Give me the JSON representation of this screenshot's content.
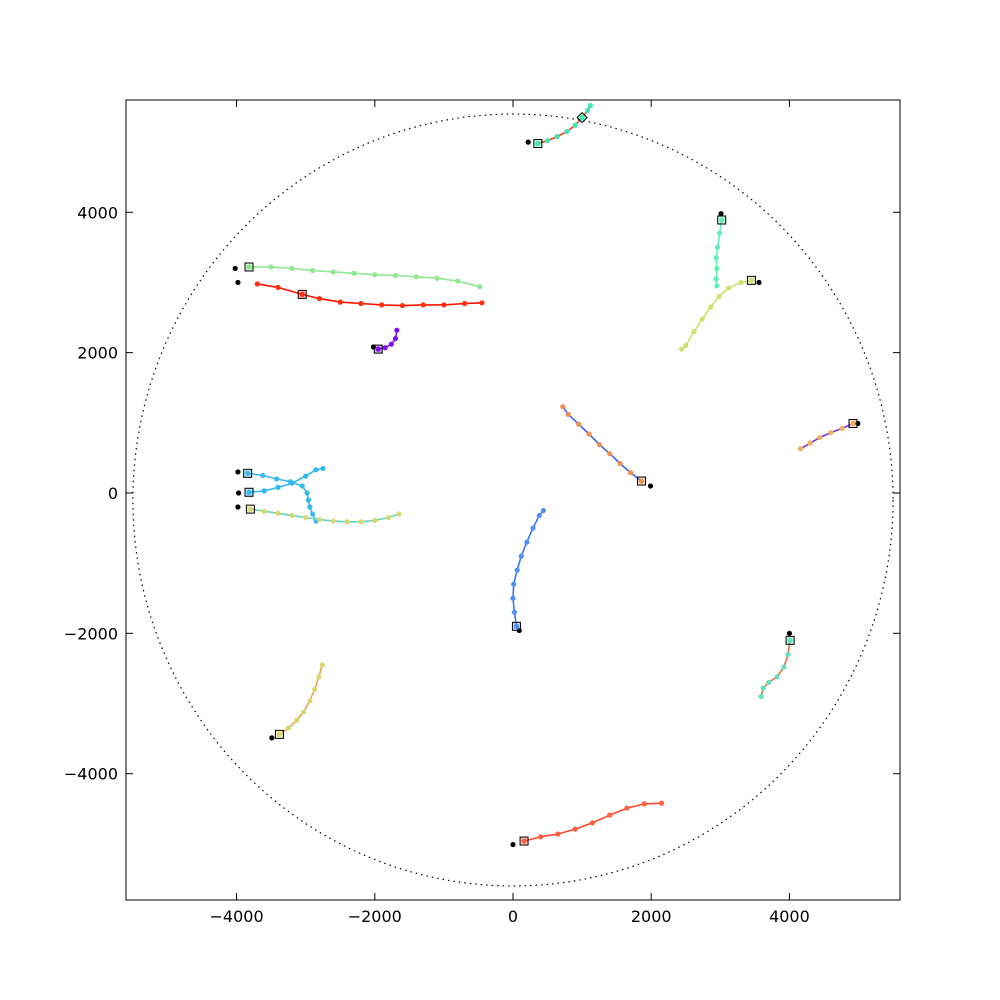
{
  "chart_data": {
    "type": "scatter",
    "title": "",
    "xlabel": "",
    "ylabel": "",
    "xlim": [
      -5600,
      5600
    ],
    "ylim": [
      -5800,
      5600
    ],
    "x_ticks": [
      -4000,
      -2000,
      0,
      2000,
      4000
    ],
    "y_ticks": [
      -4000,
      -2000,
      0,
      2000,
      4000
    ],
    "x_tick_labels": [
      "−4000",
      "−2000",
      "0",
      "2000",
      "4000"
    ],
    "y_tick_labels": [
      "−4000",
      "−2000",
      "0",
      "2000",
      "4000"
    ],
    "grid": false,
    "boundary_circle": {
      "center": [
        0,
        -100
      ],
      "radius": 5500,
      "style": "dotted",
      "color": "#000000"
    },
    "tracks": [
      {
        "name": "track-top-center",
        "color": "#e8451e",
        "dot_color": "#40e8b0",
        "start": [
          220,
          5000
        ],
        "square": [
          360,
          4980
        ],
        "end": [
          1000,
          5350
        ],
        "end_marker": "diamond",
        "points": [
          [
            360,
            4980
          ],
          [
            500,
            5020
          ],
          [
            640,
            5080
          ],
          [
            780,
            5150
          ],
          [
            900,
            5240
          ],
          [
            1000,
            5350
          ],
          [
            1080,
            5450
          ],
          [
            1120,
            5520
          ]
        ]
      },
      {
        "name": "track-upper-right-a",
        "color": "#60f0b8",
        "dot_color": "#60f0b8",
        "start": [
          3010,
          3980
        ],
        "square": [
          3020,
          3890
        ],
        "points": [
          [
            3020,
            3890
          ],
          [
            2990,
            3700
          ],
          [
            2960,
            3500
          ],
          [
            2940,
            3350
          ],
          [
            2950,
            3200
          ],
          [
            2940,
            3050
          ],
          [
            2950,
            2950
          ]
        ]
      },
      {
        "name": "track-upper-right-b",
        "color": "#d0e070",
        "dot_color": "#d0e070",
        "start": [
          3560,
          3000
        ],
        "square": [
          3450,
          3030
        ],
        "points": [
          [
            3450,
            3030
          ],
          [
            3300,
            3000
          ],
          [
            3120,
            2920
          ],
          [
            2980,
            2800
          ],
          [
            2860,
            2650
          ],
          [
            2740,
            2480
          ],
          [
            2620,
            2300
          ],
          [
            2500,
            2100
          ],
          [
            2440,
            2050
          ]
        ]
      },
      {
        "name": "track-upper-left-green",
        "color": "#90e890",
        "dot_color": "#90e890",
        "start": [
          -4020,
          3200
        ],
        "square": [
          -3820,
          3220
        ],
        "points": [
          [
            -3820,
            3220
          ],
          [
            -3500,
            3220
          ],
          [
            -3200,
            3200
          ],
          [
            -2900,
            3170
          ],
          [
            -2600,
            3150
          ],
          [
            -2300,
            3130
          ],
          [
            -2000,
            3110
          ],
          [
            -1700,
            3100
          ],
          [
            -1400,
            3080
          ],
          [
            -1100,
            3060
          ],
          [
            -800,
            3020
          ],
          [
            -480,
            2940
          ]
        ]
      },
      {
        "name": "track-upper-left-red",
        "color": "#ff1000",
        "dot_color": "#ff3010",
        "start": [
          -3980,
          3000
        ],
        "square": [
          -3050,
          2830
        ],
        "points": [
          [
            -3700,
            2980
          ],
          [
            -3400,
            2930
          ],
          [
            -3050,
            2830
          ],
          [
            -2800,
            2770
          ],
          [
            -2500,
            2720
          ],
          [
            -2200,
            2700
          ],
          [
            -1900,
            2680
          ],
          [
            -1600,
            2670
          ],
          [
            -1300,
            2680
          ],
          [
            -1000,
            2680
          ],
          [
            -700,
            2700
          ],
          [
            -450,
            2710
          ]
        ]
      },
      {
        "name": "track-purple-small",
        "color": "#8010e8",
        "dot_color": "#8010e8",
        "start": [
          -2020,
          2080
        ],
        "square": [
          -1950,
          2050
        ],
        "points": [
          [
            -1950,
            2050
          ],
          [
            -1850,
            2070
          ],
          [
            -1760,
            2120
          ],
          [
            -1700,
            2200
          ],
          [
            -1680,
            2320
          ]
        ]
      },
      {
        "name": "track-center-diagonal",
        "color": "#4060f0",
        "dot_color": "#f09050",
        "start": [
          1990,
          100
        ],
        "square": [
          1860,
          170
        ],
        "points": [
          [
            1860,
            170
          ],
          [
            1700,
            290
          ],
          [
            1550,
            420
          ],
          [
            1400,
            560
          ],
          [
            1250,
            690
          ],
          [
            1100,
            840
          ],
          [
            950,
            980
          ],
          [
            800,
            1120
          ],
          [
            720,
            1230
          ]
        ]
      },
      {
        "name": "track-right-purple",
        "color": "#8030e0",
        "dot_color": "#f0b060",
        "start": [
          4990,
          990
        ],
        "square": [
          4920,
          990
        ],
        "points": [
          [
            4920,
            990
          ],
          [
            4760,
            920
          ],
          [
            4600,
            860
          ],
          [
            4440,
            790
          ],
          [
            4300,
            710
          ],
          [
            4160,
            630
          ]
        ]
      },
      {
        "name": "track-left-cyan-arc",
        "color": "#3cb8e8",
        "dot_color": "#3cb8e8",
        "start": [
          -3980,
          300
        ],
        "square": [
          -3840,
          280
        ],
        "points": [
          [
            -3840,
            280
          ],
          [
            -3620,
            250
          ],
          [
            -3420,
            200
          ],
          [
            -3220,
            160
          ],
          [
            -3050,
            100
          ],
          [
            -2980,
            0
          ],
          [
            -2960,
            -100
          ],
          [
            -2940,
            -200
          ],
          [
            -2900,
            -300
          ],
          [
            -2850,
            -400
          ]
        ]
      },
      {
        "name": "track-left-cyan-branch",
        "color": "#30b8f0",
        "dot_color": "#30b8f0",
        "start": [
          -3970,
          0
        ],
        "square": [
          -3820,
          10
        ],
        "points": [
          [
            -3820,
            10
          ],
          [
            -3600,
            30
          ],
          [
            -3400,
            80
          ],
          [
            -3200,
            140
          ],
          [
            -3000,
            240
          ],
          [
            -2850,
            330
          ],
          [
            -2750,
            350
          ]
        ]
      },
      {
        "name": "track-left-lower",
        "color": "#60d8b8",
        "dot_color": "#d8d870",
        "start": [
          -3980,
          -200
        ],
        "square": [
          -3800,
          -230
        ],
        "points": [
          [
            -3800,
            -230
          ],
          [
            -3600,
            -260
          ],
          [
            -3400,
            -290
          ],
          [
            -3200,
            -320
          ],
          [
            -3000,
            -350
          ],
          [
            -2800,
            -380
          ],
          [
            -2600,
            -400
          ],
          [
            -2400,
            -410
          ],
          [
            -2200,
            -410
          ],
          [
            -2000,
            -390
          ],
          [
            -1800,
            -350
          ],
          [
            -1650,
            -300
          ]
        ]
      },
      {
        "name": "track-center-blue",
        "color": "#3878f0",
        "dot_color": "#5090f0",
        "start": [
          90,
          -1960
        ],
        "square": [
          50,
          -1900
        ],
        "points": [
          [
            50,
            -1900
          ],
          [
            20,
            -1700
          ],
          [
            0,
            -1500
          ],
          [
            10,
            -1300
          ],
          [
            60,
            -1100
          ],
          [
            120,
            -900
          ],
          [
            200,
            -700
          ],
          [
            290,
            -500
          ],
          [
            380,
            -320
          ],
          [
            440,
            -250
          ]
        ]
      },
      {
        "name": "track-lower-right",
        "color": "#e87040",
        "dot_color": "#60e0c0",
        "start": [
          4000,
          -2000
        ],
        "square": [
          4010,
          -2100
        ],
        "points": [
          [
            4010,
            -2100
          ],
          [
            3980,
            -2300
          ],
          [
            3920,
            -2480
          ],
          [
            3820,
            -2620
          ],
          [
            3700,
            -2700
          ],
          [
            3620,
            -2780
          ],
          [
            3590,
            -2900
          ]
        ]
      },
      {
        "name": "track-lower-left",
        "color": "#f0a050",
        "dot_color": "#d8d870",
        "start": [
          -3490,
          -3490
        ],
        "square": [
          -3380,
          -3440
        ],
        "points": [
          [
            -3380,
            -3440
          ],
          [
            -3250,
            -3350
          ],
          [
            -3130,
            -3240
          ],
          [
            -3030,
            -3120
          ],
          [
            -2940,
            -2960
          ],
          [
            -2870,
            -2800
          ],
          [
            -2810,
            -2620
          ],
          [
            -2760,
            -2450
          ]
        ]
      },
      {
        "name": "track-bottom",
        "color": "#ff4828",
        "dot_color": "#ff6040",
        "start": [
          0,
          -5010
        ],
        "square": [
          160,
          -4960
        ],
        "points": [
          [
            160,
            -4960
          ],
          [
            400,
            -4900
          ],
          [
            650,
            -4860
          ],
          [
            900,
            -4790
          ],
          [
            1150,
            -4700
          ],
          [
            1400,
            -4590
          ],
          [
            1650,
            -4490
          ],
          [
            1900,
            -4430
          ],
          [
            2150,
            -4420
          ]
        ]
      }
    ]
  }
}
